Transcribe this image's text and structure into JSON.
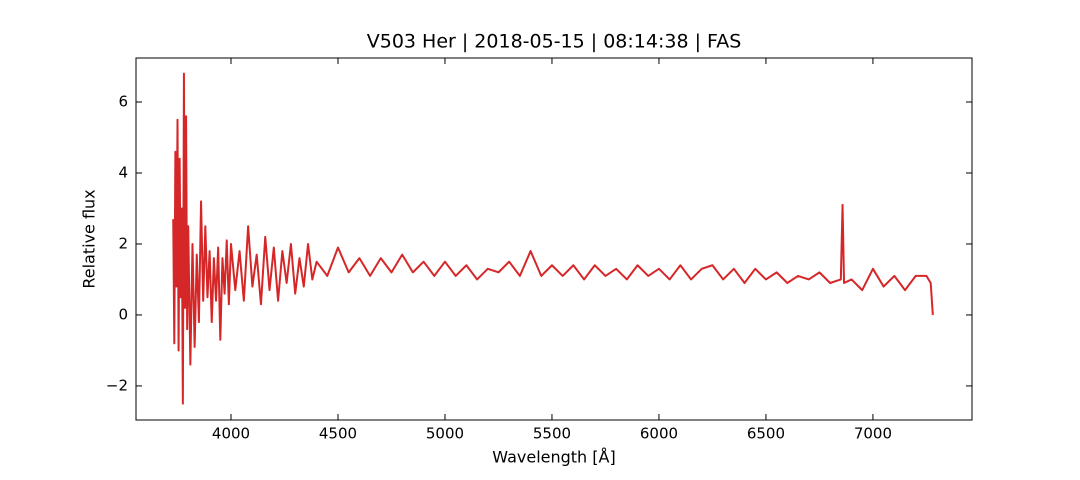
{
  "chart_data": {
    "type": "line",
    "title": "V503 Her | 2018-05-15 | 08:14:38 | FAS",
    "xlabel": "Wavelength [Å]",
    "ylabel": "Relative flux",
    "xlim": [
      3556,
      7463
    ],
    "ylim": [
      -2.96,
      7.24
    ],
    "xticks": [
      4000,
      4500,
      5000,
      5500,
      6000,
      6500,
      7000
    ],
    "yticks": [
      {
        "value": -2,
        "label": "−2"
      },
      0,
      2,
      4,
      6
    ],
    "x": [
      3730,
      3735,
      3740,
      3745,
      3750,
      3755,
      3760,
      3765,
      3770,
      3775,
      3780,
      3785,
      3790,
      3795,
      3800,
      3810,
      3820,
      3830,
      3840,
      3850,
      3860,
      3870,
      3880,
      3890,
      3900,
      3910,
      3920,
      3930,
      3940,
      3950,
      3960,
      3970,
      3980,
      3990,
      4000,
      4020,
      4040,
      4060,
      4080,
      4100,
      4120,
      4140,
      4160,
      4180,
      4200,
      4220,
      4240,
      4260,
      4280,
      4300,
      4320,
      4340,
      4360,
      4380,
      4400,
      4450,
      4500,
      4550,
      4600,
      4650,
      4700,
      4750,
      4800,
      4850,
      4900,
      4950,
      5000,
      5050,
      5100,
      5150,
      5200,
      5250,
      5300,
      5350,
      5400,
      5450,
      5500,
      5550,
      5600,
      5650,
      5700,
      5750,
      5800,
      5850,
      5900,
      5950,
      6000,
      6050,
      6100,
      6150,
      6200,
      6250,
      6300,
      6350,
      6400,
      6450,
      6500,
      6550,
      6600,
      6650,
      6700,
      6750,
      6800,
      6850,
      6858,
      6865,
      6900,
      6950,
      7000,
      7050,
      7100,
      7150,
      7200,
      7250,
      7270,
      7280
    ],
    "series": [
      {
        "color": "#d62728",
        "values": [
          2.7,
          -0.8,
          4.6,
          0.8,
          5.5,
          -1.0,
          4.4,
          0.5,
          3.0,
          -2.5,
          6.8,
          0.2,
          5.6,
          -0.4,
          2.5,
          -1.4,
          2.0,
          -0.9,
          1.7,
          -0.2,
          3.2,
          0.4,
          2.5,
          0.5,
          1.8,
          -0.2,
          1.6,
          0.4,
          1.9,
          -0.7,
          1.6,
          0.6,
          2.1,
          0.3,
          2.0,
          0.7,
          1.8,
          0.4,
          2.5,
          0.8,
          1.7,
          0.3,
          2.2,
          0.7,
          1.9,
          0.4,
          1.8,
          0.9,
          2.0,
          0.6,
          1.6,
          0.8,
          2.0,
          1.0,
          1.5,
          1.1,
          1.9,
          1.2,
          1.6,
          1.1,
          1.6,
          1.2,
          1.7,
          1.2,
          1.5,
          1.1,
          1.5,
          1.1,
          1.4,
          1.0,
          1.3,
          1.2,
          1.5,
          1.1,
          1.8,
          1.1,
          1.4,
          1.1,
          1.4,
          1.0,
          1.4,
          1.1,
          1.3,
          1.0,
          1.4,
          1.1,
          1.3,
          1.0,
          1.4,
          1.0,
          1.3,
          1.4,
          1.0,
          1.3,
          0.9,
          1.3,
          1.0,
          1.2,
          0.9,
          1.1,
          1.0,
          1.2,
          0.9,
          1.0,
          3.1,
          0.9,
          1.0,
          0.7,
          1.3,
          0.8,
          1.1,
          0.7,
          1.1,
          1.1,
          0.9,
          0.0
        ]
      }
    ]
  }
}
